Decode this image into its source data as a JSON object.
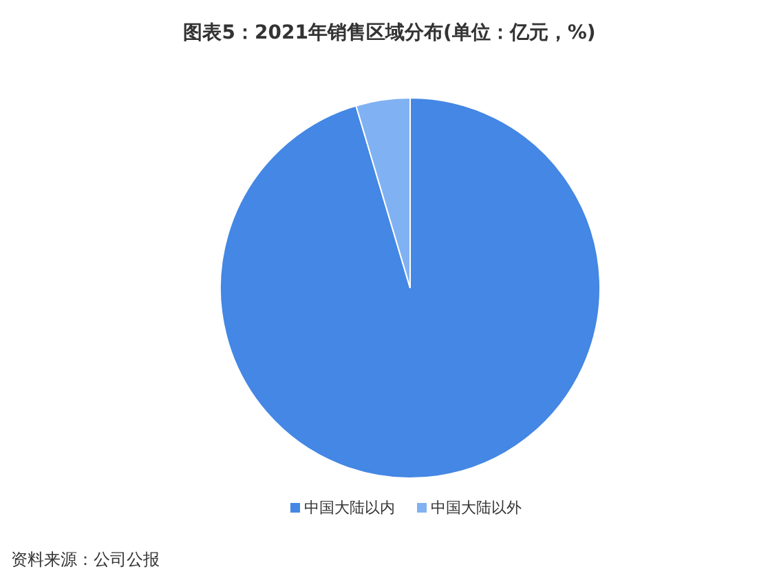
{
  "chart_data": {
    "type": "pie",
    "title": "图表5：2021年销售区域分布(单位：亿元，%)",
    "categories": [
      "中国大陆以内",
      "中国大陆以外"
    ],
    "values": [
      95.4,
      4.6
    ],
    "colors": [
      "#4487e4",
      "#80b1f2"
    ],
    "legend": "bottom",
    "annotations": [
      "资料来源：公司公报"
    ]
  }
}
